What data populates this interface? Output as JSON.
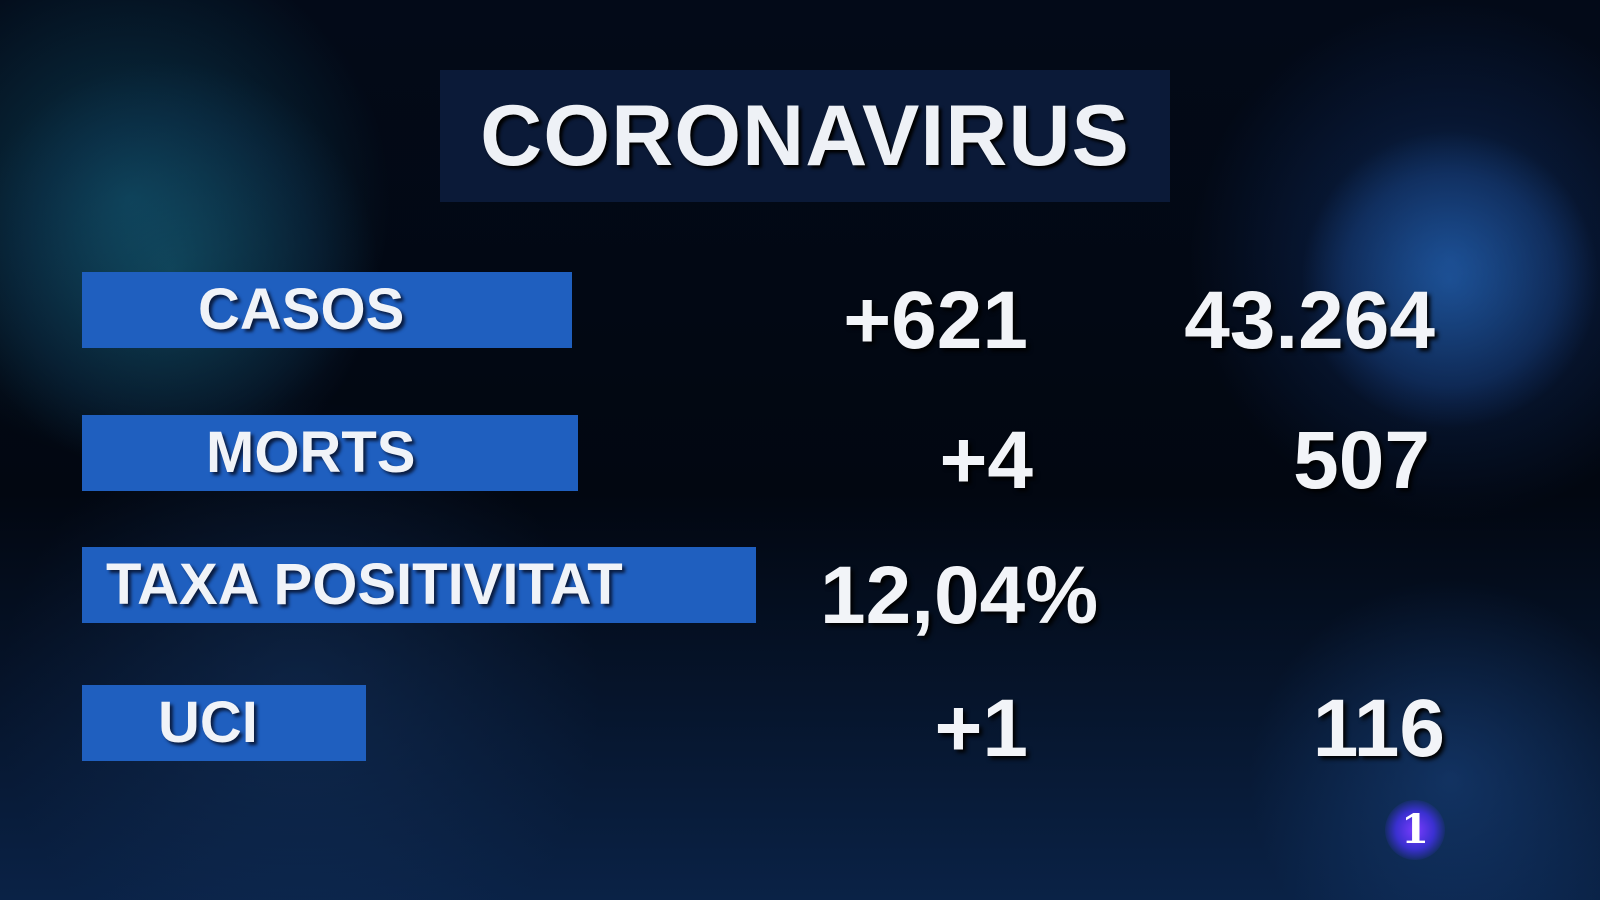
{
  "title": "CORONAVIRUS",
  "rows": [
    {
      "label": "CASOS",
      "change": "+621",
      "total": "43.264"
    },
    {
      "label": "MORTS",
      "change": "+4",
      "total": "507"
    },
    {
      "label": "TAXA POSITIVITAT",
      "value": "12,04%"
    },
    {
      "label": "UCI",
      "change": "+1",
      "total": "116"
    }
  ],
  "channel_logo": "1",
  "colors": {
    "label_bar": "#1f5fbf",
    "title_box": "#0b1a38",
    "background": "#020711"
  }
}
